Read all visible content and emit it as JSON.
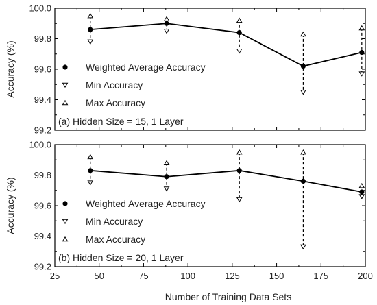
{
  "chart_data": [
    {
      "type": "line",
      "panel_label": "(a) Hidden Size = 15, 1 Layer",
      "ylabel": "Accuracy (%)",
      "xlim": [
        25,
        200
      ],
      "ylim": [
        99.2,
        100.0
      ],
      "grid": false,
      "legend": "middle-left",
      "legend_entries": [
        "Weighted Average Accuracy",
        "Min Accuracy",
        "Max Accuracy"
      ],
      "x": [
        45,
        88,
        129,
        165,
        198
      ],
      "series": [
        {
          "name": "Weighted Average Accuracy",
          "values": [
            99.86,
            99.9,
            99.84,
            99.62,
            99.71
          ]
        },
        {
          "name": "Min Accuracy",
          "values": [
            99.78,
            99.85,
            99.72,
            99.45,
            99.57
          ]
        },
        {
          "name": "Max Accuracy",
          "values": [
            99.95,
            99.93,
            99.92,
            99.83,
            99.87
          ]
        }
      ]
    },
    {
      "type": "line",
      "panel_label": "(b) Hidden Size = 20, 1 Layer",
      "ylabel": "Accuracy (%)",
      "xlabel": "Number of Training Data Sets",
      "xlim": [
        25,
        200
      ],
      "ylim": [
        99.2,
        100.0
      ],
      "grid": false,
      "legend": "middle-left",
      "legend_entries": [
        "Weighted Average Accuracy",
        "Min Accuracy",
        "Max Accuracy"
      ],
      "x": [
        45,
        88,
        129,
        165,
        198
      ],
      "series": [
        {
          "name": "Weighted Average Accuracy",
          "values": [
            99.83,
            99.79,
            99.83,
            99.76,
            99.69
          ]
        },
        {
          "name": "Min Accuracy",
          "values": [
            99.75,
            99.71,
            99.64,
            99.33,
            99.66
          ]
        },
        {
          "name": "Max Accuracy",
          "values": [
            99.92,
            99.88,
            99.95,
            99.95,
            99.73
          ]
        }
      ]
    }
  ],
  "axes": {
    "x_ticks": [
      25,
      50,
      75,
      100,
      125,
      150,
      175,
      200
    ],
    "y_ticks": [
      99.2,
      99.4,
      99.6,
      99.8,
      100.0
    ],
    "y_tick_labels": [
      "99.2",
      "99.4",
      "99.6",
      "99.8",
      "100.0"
    ]
  },
  "style": {
    "line_color": "#000000",
    "marker_color": "#000000"
  }
}
